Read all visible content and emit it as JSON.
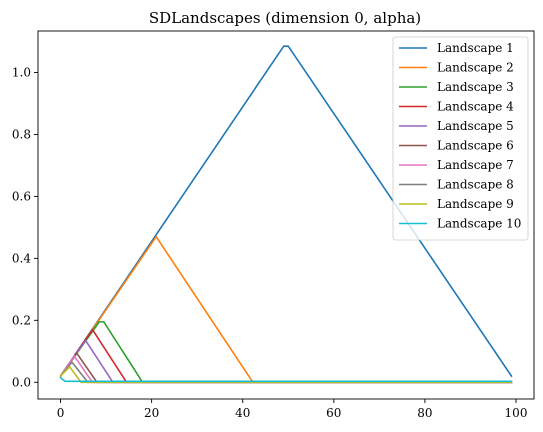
{
  "chart_data": {
    "type": "line",
    "title": "SDLandscapes (dimension 0, alpha)",
    "xlabel": "",
    "ylabel": "",
    "xlim": [
      -4.95,
      103.95
    ],
    "ylim": [
      -0.054,
      1.134
    ],
    "x_ticks": [
      0,
      20,
      40,
      60,
      80,
      100
    ],
    "y_ticks": [
      0.0,
      0.2,
      0.4,
      0.6,
      0.8,
      1.0
    ],
    "x_tick_labels": [
      "0",
      "20",
      "40",
      "60",
      "80",
      "100"
    ],
    "y_tick_labels": [
      "0.0",
      "0.2",
      "0.4",
      "0.6",
      "0.8",
      "1.0"
    ],
    "grid": false,
    "legend_position": "top-right",
    "series": [
      {
        "name": "Landscape 1",
        "color": "#1f77b4",
        "points": [
          [
            0,
            0.02
          ],
          [
            49,
            1.085
          ],
          [
            50,
            1.085
          ],
          [
            99,
            0.02
          ]
        ]
      },
      {
        "name": "Landscape 2",
        "color": "#ff7f0e",
        "points": [
          [
            0,
            0.02
          ],
          [
            21,
            0.47
          ],
          [
            42,
            0.005
          ],
          [
            43,
            0.0
          ],
          [
            99,
            0.0
          ]
        ]
      },
      {
        "name": "Landscape 3",
        "color": "#2ca02c",
        "points": [
          [
            0,
            0.02
          ],
          [
            8.5,
            0.195
          ],
          [
            9.5,
            0.195
          ],
          [
            18,
            0.0
          ],
          [
            99,
            0.0
          ]
        ]
      },
      {
        "name": "Landscape 4",
        "color": "#d62728",
        "points": [
          [
            0,
            0.02
          ],
          [
            7,
            0.17
          ],
          [
            14.5,
            0.0
          ],
          [
            99,
            0.0
          ]
        ]
      },
      {
        "name": "Landscape 5",
        "color": "#9467bd",
        "points": [
          [
            0,
            0.02
          ],
          [
            5.5,
            0.135
          ],
          [
            11.5,
            0.0
          ],
          [
            99,
            0.0
          ]
        ]
      },
      {
        "name": "Landscape 6",
        "color": "#8c564b",
        "points": [
          [
            0,
            0.02
          ],
          [
            3.5,
            0.095
          ],
          [
            8,
            0.0
          ],
          [
            99,
            0.0
          ]
        ]
      },
      {
        "name": "Landscape 7",
        "color": "#e377c2",
        "points": [
          [
            0,
            0.02
          ],
          [
            3,
            0.085
          ],
          [
            7,
            0.0
          ],
          [
            99,
            0.0
          ]
        ]
      },
      {
        "name": "Landscape 8",
        "color": "#7f7f7f",
        "points": [
          [
            0,
            0.02
          ],
          [
            2.5,
            0.065
          ],
          [
            6,
            0.0
          ],
          [
            99,
            0.0
          ]
        ]
      },
      {
        "name": "Landscape 9",
        "color": "#bcbd22",
        "points": [
          [
            0,
            0.02
          ],
          [
            2,
            0.05
          ],
          [
            4.5,
            0.0
          ],
          [
            99,
            0.0
          ]
        ]
      },
      {
        "name": "Landscape 10",
        "color": "#17becf",
        "points": [
          [
            0,
            0.015
          ],
          [
            1,
            0.003
          ],
          [
            99,
            0.003
          ]
        ]
      }
    ]
  }
}
